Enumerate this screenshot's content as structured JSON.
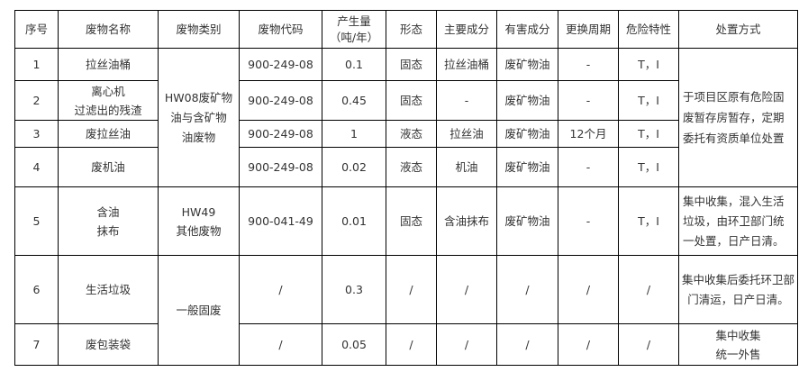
{
  "headers": [
    "序号",
    "废物名称",
    "废物类别",
    "废物代码",
    "产生量\n（吨/年）",
    "形态",
    "主要成分",
    "有害成分",
    "更换周期",
    "危险特性",
    "处置方式"
  ],
  "rows": [
    {
      "no": "1",
      "name": "拉丝油桶",
      "code": "900-249-08",
      "amount": "0.1",
      "form": "固态",
      "main": "拉丝油桶",
      "harm": "废矿物油",
      "cycle": "-",
      "hazard": "T，I"
    },
    {
      "no": "2",
      "name": "离心机\n过滤出的残渣",
      "code": "900-249-08",
      "amount": "0.45",
      "form": "固态",
      "main": "-",
      "harm": "废矿物油",
      "cycle": "-",
      "hazard": "T，I"
    },
    {
      "no": "3",
      "name": "废拉丝油",
      "code": "900-249-08",
      "amount": "1",
      "form": "液态",
      "main": "拉丝油",
      "harm": "废矿物油",
      "cycle": "12个月",
      "hazard": "T，I"
    },
    {
      "no": "4",
      "name": "废机油",
      "code": "900-249-08",
      "amount": "0.02",
      "form": "液态",
      "main": "机油",
      "harm": "废矿物油",
      "cycle": "-",
      "hazard": "T，I"
    },
    {
      "no": "5",
      "name": "含油\n抹布",
      "category": "HW49\n其他废物",
      "code": "900-041-49",
      "amount": "0.01",
      "form": "固态",
      "main": "含油抹布",
      "harm": "废矿物油",
      "cycle": "-",
      "hazard": "T，I",
      "disposal": "集中收集，混入生活垃圾，由环卫部门统一处置，日产日清。"
    },
    {
      "no": "6",
      "name": "生活垃圾",
      "code": "/",
      "amount": "0.3",
      "form": "/",
      "main": "/",
      "harm": "/",
      "cycle": "/",
      "hazard": "/",
      "disposal": "集中收集后委托环卫部门清运，日产日清。"
    },
    {
      "no": "7",
      "name": "废包装袋",
      "code": "/",
      "amount": "0.05",
      "form": "/",
      "main": "/",
      "harm": "/",
      "cycle": "/",
      "hazard": "/",
      "disposal": "集中收集\n统一外售"
    }
  ],
  "merged": {
    "category_hw08": "HW08废矿物\n油与含矿物\n油废物",
    "disposal_hw08": "于项目区原有危险固废暂存房暂存，定期委托有资质单位处置",
    "category_general": "一般固废"
  }
}
